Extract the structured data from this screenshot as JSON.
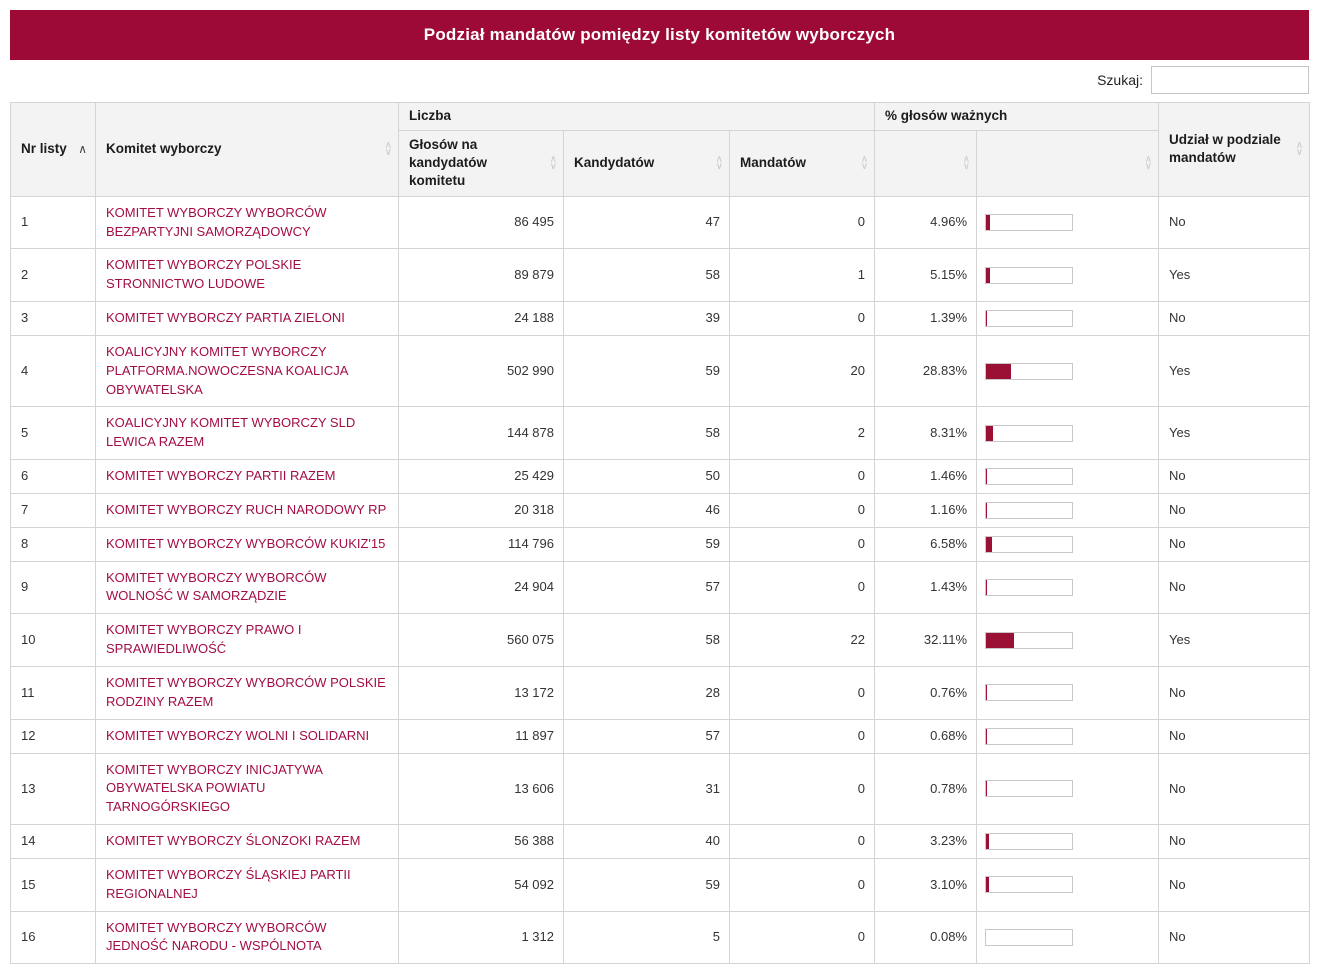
{
  "title_bar": {
    "title": "Podział mandatów pomiędzy listy komitetów wyborczych"
  },
  "search": {
    "label": "Szukaj:",
    "value": "",
    "placeholder": ""
  },
  "icons": {
    "sort_asc": "∧",
    "sort_up": "∧",
    "sort_down": "∨"
  },
  "colors": {
    "banner_bg": "#9e0a36",
    "link": "#a30d47",
    "bar_fill": "#9b1035"
  },
  "sort_state": {
    "active_column": "Nr listy",
    "direction": "asc"
  },
  "table": {
    "group_liczba": "Liczba",
    "group_pct": "% głosów ważnych",
    "col_nr": "Nr listy",
    "col_committee": "Komitet wyborczy",
    "col_votes": "Głosów na kandydatów komitetu",
    "col_candidates": "Kandydatów",
    "col_mandates": "Mandatów",
    "col_share": "Udział w podziale mandatów",
    "rows": [
      {
        "nr": "1",
        "committee": "KOMITET WYBORCZY WYBORCÓW BEZPARTYJNI SAMORZĄDOWCY",
        "votes": "86 495",
        "candidates": "47",
        "mandates": "0",
        "pct": "4.96%",
        "pct_value": 4.96,
        "share": "No"
      },
      {
        "nr": "2",
        "committee": "KOMITET WYBORCZY POLSKIE STRONNICTWO LUDOWE",
        "votes": "89 879",
        "candidates": "58",
        "mandates": "1",
        "pct": "5.15%",
        "pct_value": 5.15,
        "share": "Yes"
      },
      {
        "nr": "3",
        "committee": "KOMITET WYBORCZY PARTIA ZIELONI",
        "votes": "24 188",
        "candidates": "39",
        "mandates": "0",
        "pct": "1.39%",
        "pct_value": 1.39,
        "share": "No"
      },
      {
        "nr": "4",
        "committee": "KOALICYJNY KOMITET WYBORCZY PLATFORMA.NOWOCZESNA KOALICJA OBYWATELSKA",
        "votes": "502 990",
        "candidates": "59",
        "mandates": "20",
        "pct": "28.83%",
        "pct_value": 28.83,
        "share": "Yes"
      },
      {
        "nr": "5",
        "committee": "KOALICYJNY KOMITET WYBORCZY SLD LEWICA RAZEM",
        "votes": "144 878",
        "candidates": "58",
        "mandates": "2",
        "pct": "8.31%",
        "pct_value": 8.31,
        "share": "Yes"
      },
      {
        "nr": "6",
        "committee": "KOMITET WYBORCZY PARTII RAZEM",
        "votes": "25 429",
        "candidates": "50",
        "mandates": "0",
        "pct": "1.46%",
        "pct_value": 1.46,
        "share": "No"
      },
      {
        "nr": "7",
        "committee": "KOMITET WYBORCZY RUCH NARODOWY RP",
        "votes": "20 318",
        "candidates": "46",
        "mandates": "0",
        "pct": "1.16%",
        "pct_value": 1.16,
        "share": "No"
      },
      {
        "nr": "8",
        "committee": "KOMITET WYBORCZY WYBORCÓW KUKIZ'15",
        "votes": "114 796",
        "candidates": "59",
        "mandates": "0",
        "pct": "6.58%",
        "pct_value": 6.58,
        "share": "No"
      },
      {
        "nr": "9",
        "committee": "KOMITET WYBORCZY WYBORCÓW WOLNOŚĆ W SAMORZĄDZIE",
        "votes": "24 904",
        "candidates": "57",
        "mandates": "0",
        "pct": "1.43%",
        "pct_value": 1.43,
        "share": "No"
      },
      {
        "nr": "10",
        "committee": "KOMITET WYBORCZY PRAWO I SPRAWIEDLIWOŚĆ",
        "votes": "560 075",
        "candidates": "58",
        "mandates": "22",
        "pct": "32.11%",
        "pct_value": 32.11,
        "share": "Yes"
      },
      {
        "nr": "11",
        "committee": "KOMITET WYBORCZY WYBORCÓW POLSKIE RODZINY RAZEM",
        "votes": "13 172",
        "candidates": "28",
        "mandates": "0",
        "pct": "0.76%",
        "pct_value": 0.76,
        "share": "No"
      },
      {
        "nr": "12",
        "committee": "KOMITET WYBORCZY WOLNI I SOLIDARNI",
        "votes": "11 897",
        "candidates": "57",
        "mandates": "0",
        "pct": "0.68%",
        "pct_value": 0.68,
        "share": "No"
      },
      {
        "nr": "13",
        "committee": "KOMITET WYBORCZY INICJATYWA OBYWATELSKA POWIATU TARNOGÓRSKIEGO",
        "votes": "13 606",
        "candidates": "31",
        "mandates": "0",
        "pct": "0.78%",
        "pct_value": 0.78,
        "share": "No"
      },
      {
        "nr": "14",
        "committee": "KOMITET WYBORCZY ŚLONZOKI RAZEM",
        "votes": "56 388",
        "candidates": "40",
        "mandates": "0",
        "pct": "3.23%",
        "pct_value": 3.23,
        "share": "No"
      },
      {
        "nr": "15",
        "committee": "KOMITET WYBORCZY ŚLĄSKIEJ PARTII REGIONALNEJ",
        "votes": "54 092",
        "candidates": "59",
        "mandates": "0",
        "pct": "3.10%",
        "pct_value": 3.1,
        "share": "No"
      },
      {
        "nr": "16",
        "committee": "KOMITET WYBORCZY WYBORCÓW JEDNOŚĆ NARODU - WSPÓLNOTA",
        "votes": "1 312",
        "candidates": "5",
        "mandates": "0",
        "pct": "0.08%",
        "pct_value": 0.08,
        "share": "No"
      }
    ]
  }
}
